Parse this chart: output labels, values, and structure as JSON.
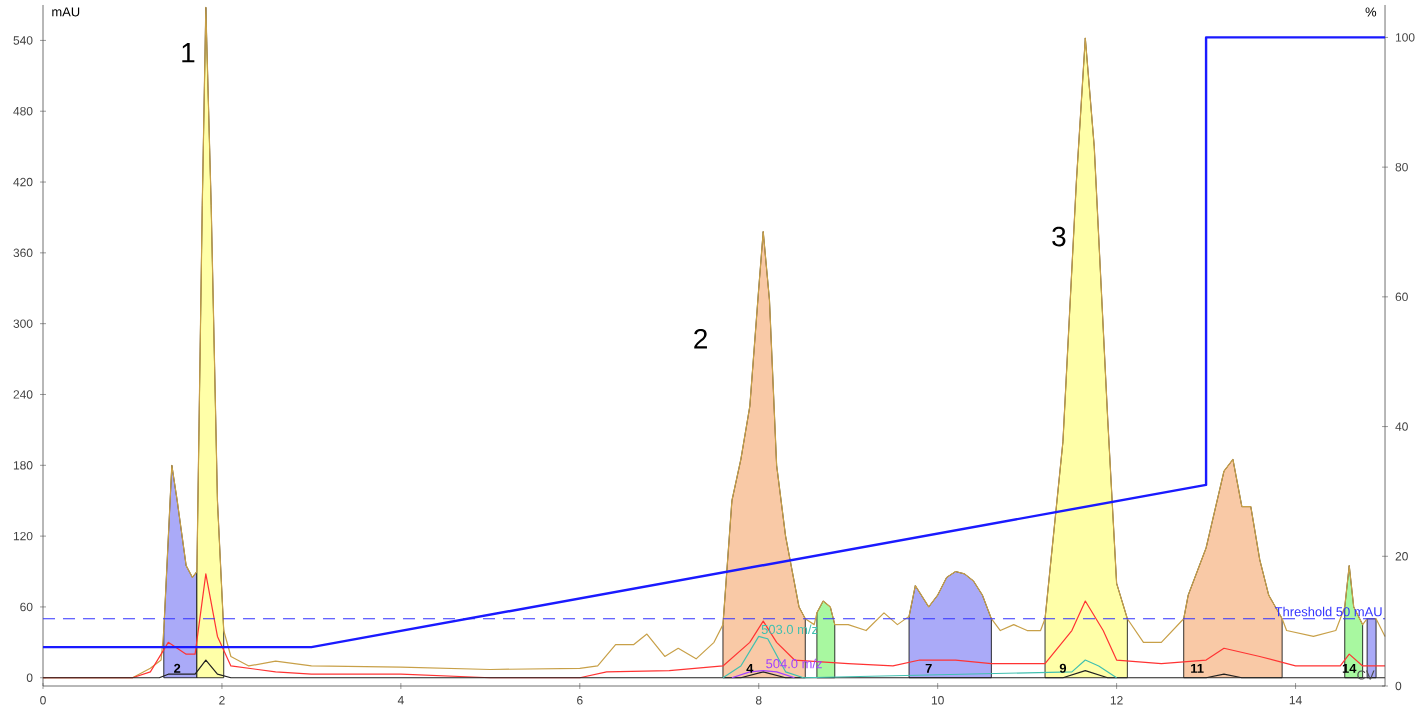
{
  "chart_data": {
    "type": "line",
    "xlabel": "CV",
    "ylabel": "mAU",
    "y2label": "%",
    "xlim": [
      0,
      15
    ],
    "ylim": [
      -7,
      570
    ],
    "y2lim": [
      0,
      105
    ],
    "xticks": [
      0,
      2,
      4,
      6,
      8,
      10,
      12,
      14
    ],
    "yticks": [
      0,
      60,
      120,
      180,
      240,
      300,
      360,
      420,
      480,
      540
    ],
    "y2ticks": [
      0,
      20,
      40,
      60,
      80,
      100
    ],
    "series": [
      {
        "type": "area",
        "color": "#aaaaf8",
        "x": [
          1.35,
          1.44,
          1.5,
          1.6,
          1.67,
          1.72
        ],
        "values": [
          40,
          180,
          150,
          95,
          85,
          90
        ]
      },
      {
        "type": "area",
        "color": "#ffffa8",
        "x": [
          1.72,
          1.78,
          1.82,
          1.88,
          1.95,
          2.02
        ],
        "values": [
          90,
          400,
          568,
          400,
          150,
          40
        ]
      },
      {
        "type": "area",
        "color": "#f9c9a6",
        "x": [
          7.6,
          7.7,
          7.8,
          7.9,
          8.0,
          8.05,
          8.12,
          8.2,
          8.3,
          8.45,
          8.52
        ],
        "values": [
          45,
          150,
          185,
          230,
          330,
          378,
          320,
          180,
          120,
          60,
          50
        ]
      },
      {
        "type": "area",
        "color": "#a8f8a0",
        "x": [
          8.65,
          8.72,
          8.8,
          8.85
        ],
        "values": [
          55,
          65,
          60,
          45
        ]
      },
      {
        "type": "area",
        "color": "#aaaaf8",
        "x": [
          9.68,
          9.75,
          9.9,
          10.0,
          10.1,
          10.2,
          10.3,
          10.4,
          10.5,
          10.6
        ],
        "values": [
          52,
          78,
          60,
          70,
          85,
          90,
          88,
          82,
          70,
          50
        ]
      },
      {
        "type": "area",
        "color": "#ffffa8",
        "x": [
          11.2,
          11.4,
          11.55,
          11.65,
          11.75,
          11.9,
          12.0,
          12.12
        ],
        "values": [
          50,
          200,
          420,
          542,
          450,
          220,
          80,
          50
        ]
      },
      {
        "type": "area",
        "color": "#f9c9a6",
        "x": [
          12.75,
          12.8,
          13.0,
          13.2,
          13.3,
          13.4,
          13.5,
          13.6,
          13.7,
          13.85
        ],
        "values": [
          50,
          70,
          110,
          175,
          185,
          145,
          145,
          100,
          70,
          50
        ]
      },
      {
        "type": "area",
        "color": "#a8f8a0",
        "x": [
          14.55,
          14.6,
          14.65,
          14.75
        ],
        "values": [
          60,
          95,
          60,
          45
        ]
      },
      {
        "type": "area",
        "color": "#aaaaf8",
        "x": [
          14.8,
          14.9
        ],
        "values": [
          50,
          50
        ]
      },
      {
        "color": "#c8a048",
        "x": [
          0,
          1.0,
          1.2,
          1.32,
          1.35,
          1.44,
          1.5,
          1.6,
          1.67,
          1.72,
          1.78,
          1.82,
          1.88,
          1.95,
          2.02,
          2.1,
          2.3,
          2.6,
          3.0,
          4.0,
          5.0,
          6.0,
          6.2,
          6.4,
          6.6,
          6.75,
          6.95,
          7.1,
          7.3,
          7.5,
          7.6,
          7.7,
          7.8,
          7.9,
          8.0,
          8.05,
          8.12,
          8.2,
          8.3,
          8.45,
          8.52,
          8.62,
          8.65,
          8.72,
          8.8,
          8.85,
          9.0,
          9.2,
          9.4,
          9.55,
          9.68,
          9.75,
          9.9,
          10.0,
          10.1,
          10.2,
          10.3,
          10.4,
          10.5,
          10.6,
          10.7,
          10.85,
          11.0,
          11.15,
          11.2,
          11.4,
          11.55,
          11.65,
          11.75,
          11.9,
          12.0,
          12.12,
          12.3,
          12.5,
          12.75,
          12.8,
          13.0,
          13.2,
          13.3,
          13.4,
          13.5,
          13.6,
          13.7,
          13.85,
          13.9,
          14.2,
          14.45,
          14.55,
          14.6,
          14.65,
          14.75,
          14.8,
          14.9,
          15.0
        ],
        "values": [
          0,
          0,
          8,
          15,
          40,
          180,
          150,
          95,
          85,
          90,
          400,
          568,
          400,
          150,
          40,
          18,
          10,
          14,
          10,
          9,
          7,
          8,
          10,
          28,
          28,
          37,
          18,
          25,
          16,
          30,
          45,
          150,
          185,
          230,
          330,
          378,
          320,
          180,
          120,
          60,
          50,
          45,
          55,
          65,
          60,
          45,
          45,
          40,
          55,
          45,
          52,
          78,
          60,
          70,
          85,
          90,
          88,
          82,
          70,
          50,
          40,
          45,
          40,
          40,
          50,
          200,
          420,
          542,
          450,
          220,
          80,
          50,
          30,
          30,
          50,
          70,
          110,
          175,
          185,
          145,
          145,
          100,
          70,
          50,
          40,
          35,
          40,
          60,
          95,
          60,
          45,
          50,
          50,
          35
        ]
      },
      {
        "color": "#ff3333",
        "x": [
          0,
          1.0,
          1.2,
          1.4,
          1.6,
          1.7,
          1.82,
          1.95,
          2.1,
          2.6,
          3.0,
          4.0,
          5.0,
          6.0,
          6.3,
          7.0,
          7.6,
          7.9,
          8.05,
          8.2,
          8.4,
          9.0,
          9.5,
          9.8,
          10.2,
          10.6,
          11.2,
          11.5,
          11.65,
          11.85,
          12.0,
          12.5,
          13.0,
          13.2,
          13.6,
          14.0,
          14.5,
          14.6,
          14.75,
          15.0
        ],
        "values": [
          0,
          0,
          5,
          30,
          20,
          20,
          88,
          35,
          10,
          5,
          3,
          3,
          0,
          0,
          5,
          6,
          10,
          30,
          48,
          30,
          15,
          12,
          10,
          15,
          15,
          12,
          12,
          40,
          65,
          40,
          15,
          12,
          15,
          25,
          18,
          10,
          10,
          20,
          10,
          10
        ]
      },
      {
        "color": "#202020",
        "x": [
          0,
          1.3,
          1.4,
          1.7,
          1.82,
          1.95,
          2.1,
          7.8,
          8.05,
          8.3,
          11.4,
          11.65,
          11.9,
          13.0,
          13.2,
          13.4,
          15.0
        ],
        "values": [
          0,
          0,
          3,
          3,
          15,
          3,
          0,
          0,
          5,
          0,
          0,
          6,
          0,
          0,
          3,
          0,
          0
        ]
      },
      {
        "type": "line",
        "name": "503.0 m/z",
        "color": "#40c0b0",
        "x": [
          7.6,
          7.8,
          8.0,
          8.1,
          8.3,
          8.5,
          11.5,
          11.65,
          11.8,
          12.0
        ],
        "values": [
          0,
          10,
          35,
          33,
          5,
          0,
          5,
          15,
          10,
          0
        ]
      },
      {
        "type": "line",
        "name": "504.0 m/z",
        "color": "#a040ff",
        "x": [
          7.7,
          7.9,
          8.05,
          8.2,
          8.4
        ],
        "values": [
          0,
          5,
          6,
          5,
          0
        ]
      },
      {
        "type": "line",
        "axis": "y2",
        "color": "#1a1aff",
        "x": [
          0,
          3,
          13,
          13,
          15
        ],
        "values": [
          6,
          6,
          31,
          100,
          100
        ]
      }
    ],
    "ref_lines": [
      {
        "axis": "y",
        "value": 50,
        "label": "Threshold 50 mAU",
        "color": "#3333ff",
        "line_style": "dashed"
      }
    ],
    "annotations": [
      "1",
      "2",
      "3",
      {
        "text": "2",
        "x": 1.5,
        "y": 3
      },
      {
        "text": "4",
        "x": 7.9,
        "y": 3
      },
      {
        "text": "7",
        "x": 9.9,
        "y": 3
      },
      {
        "text": "9",
        "x": 11.4,
        "y": 3
      },
      {
        "text": "11",
        "x": 12.9,
        "y": 3
      },
      {
        "text": "14",
        "x": 14.6,
        "y": 3
      }
    ]
  }
}
